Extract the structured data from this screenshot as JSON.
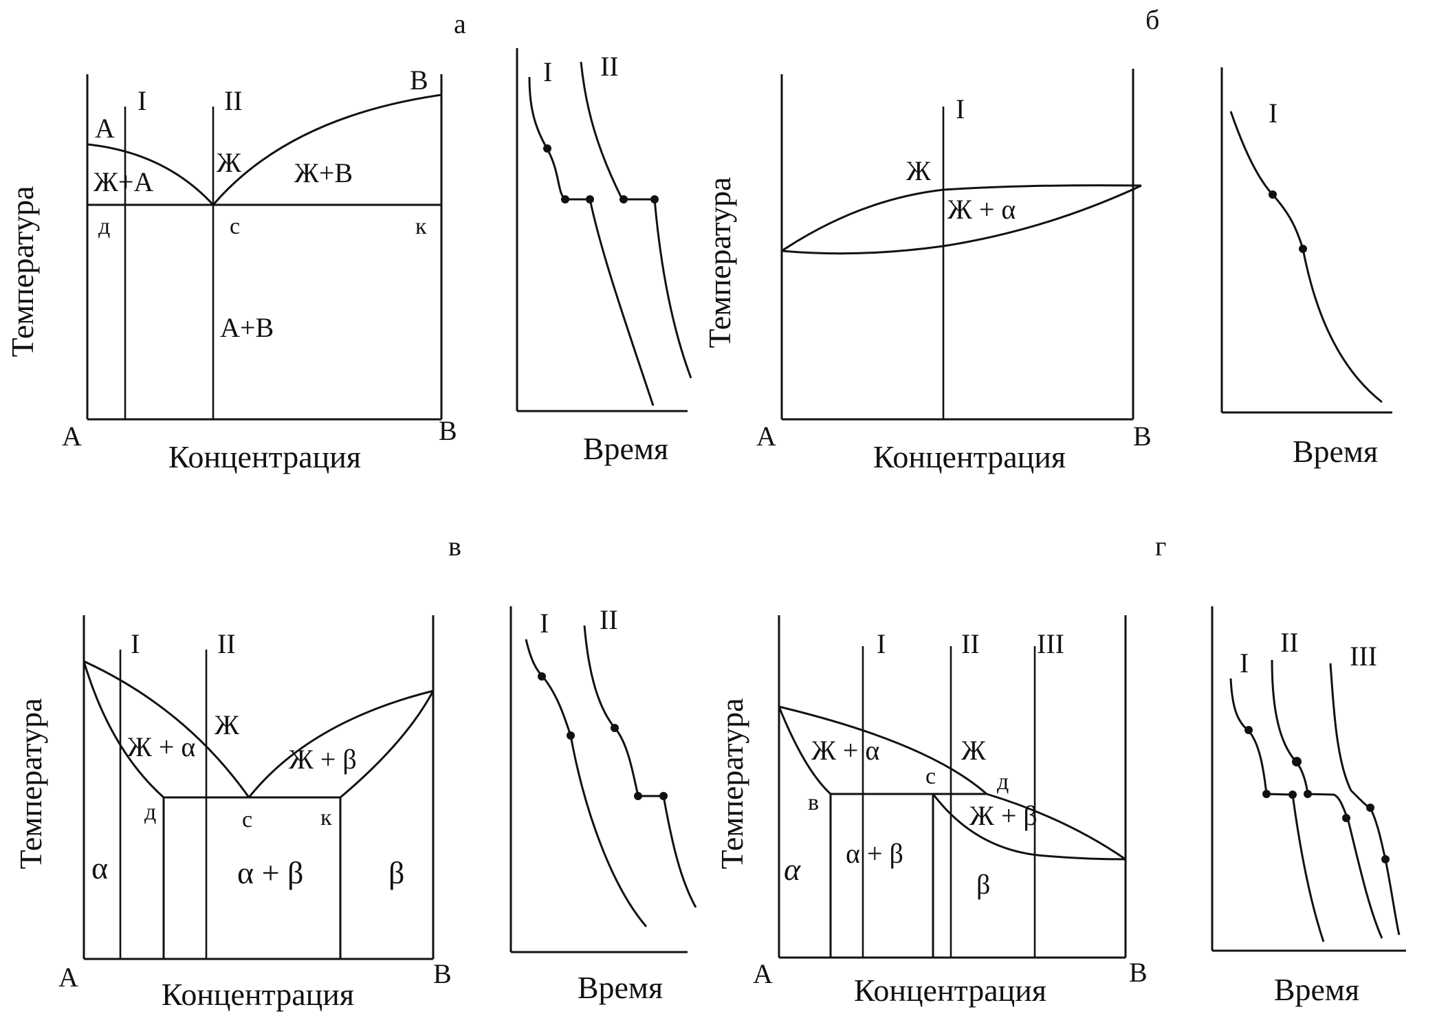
{
  "colors": {
    "ink": "#111111",
    "paper": "#ffffff"
  },
  "panel_a": {
    "letter": "а",
    "diagram": {
      "ylabel": "Температура",
      "xlabel": "Концентрация",
      "x_left": "A",
      "x_right": "B",
      "top_left": "A",
      "top_right": "B",
      "alloy_I": "I",
      "alloy_II": "II",
      "region_liquid": "Ж",
      "region_liquid_a": "Ж+А",
      "region_liquid_b": "Ж+В",
      "region_solid": "A+B",
      "point_d": "д",
      "point_c": "с",
      "point_k": "к"
    },
    "cooling": {
      "xlabel": "Время",
      "curve_I": "I",
      "curve_II": "II"
    }
  },
  "panel_b": {
    "letter": "б",
    "diagram": {
      "ylabel": "Температура",
      "xlabel": "Концентрация",
      "x_left": "A",
      "x_right": "B",
      "alloy_I": "I",
      "region_liquid": "Ж",
      "region_two_phase": "Ж + α"
    },
    "cooling": {
      "xlabel": "Время",
      "curve_I": "I"
    }
  },
  "panel_v": {
    "letter": "в",
    "diagram": {
      "ylabel": "Температура",
      "xlabel": "Концентрация",
      "x_left": "A",
      "x_right": "B",
      "alloy_I": "I",
      "alloy_II": "II",
      "region_liquid": "Ж",
      "region_liquid_alpha": "Ж + α",
      "region_liquid_beta": "Ж + β",
      "region_alpha": "α",
      "region_alpha_beta": "α + β",
      "region_beta": "β",
      "point_d": "д",
      "point_c": "с",
      "point_k": "к"
    },
    "cooling": {
      "xlabel": "Время",
      "curve_I": "I",
      "curve_II": "II"
    }
  },
  "panel_g": {
    "letter": "г",
    "diagram": {
      "ylabel": "Температура",
      "xlabel": "Концентрация",
      "x_left": "A",
      "x_right": "B",
      "alloy_I": "I",
      "alloy_II": "II",
      "alloy_III": "III",
      "region_liquid": "Ж",
      "region_liquid_alpha": "Ж + α",
      "region_liquid_beta": "Ж + β",
      "region_alpha": "α",
      "region_alpha_beta": "α + β",
      "region_beta": "β",
      "point_v": "в",
      "point_c": "с",
      "point_d": "д"
    },
    "cooling": {
      "xlabel": "Время",
      "curve_I": "I",
      "curve_II": "II",
      "curve_III": "III"
    }
  }
}
